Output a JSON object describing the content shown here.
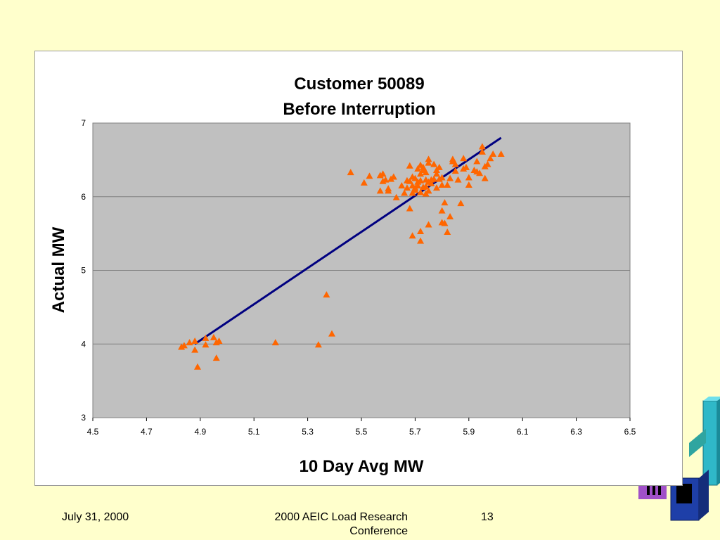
{
  "footer": {
    "date": "July 31, 2000",
    "conference": "2000 AEIC Load Research Conference",
    "page_number": "13"
  },
  "chart_data": {
    "type": "scatter",
    "title": "Customer 50089",
    "subtitle": "Before Interruption",
    "xlabel": "10 Day Avg MW",
    "ylabel": "Actual MW",
    "xlim": [
      4.5,
      6.5
    ],
    "ylim": [
      3,
      7
    ],
    "x_ticks": [
      "4.5",
      "4.7",
      "4.9",
      "5.1",
      "5.3",
      "5.5",
      "5.7",
      "5.9",
      "6.1",
      "6.3",
      "6.5"
    ],
    "y_ticks": [
      "3",
      "4",
      "5",
      "6",
      "7"
    ],
    "grid": "horizontal",
    "plot_background": "#c0c0c0",
    "marker_color": "#ff6600",
    "line_color": "#000080",
    "marker": "triangle",
    "trendline": {
      "x": [
        4.88,
        6.02
      ],
      "y": [
        4.0,
        6.8
      ]
    },
    "series": [
      {
        "points": [
          [
            4.83,
            3.96
          ],
          [
            4.84,
            3.98
          ],
          [
            4.86,
            4.02
          ],
          [
            4.88,
            4.04
          ],
          [
            4.88,
            3.92
          ],
          [
            4.89,
            3.69
          ],
          [
            4.92,
            4.08
          ],
          [
            4.92,
            3.99
          ],
          [
            4.95,
            4.09
          ],
          [
            4.96,
            4.02
          ],
          [
            4.96,
            3.81
          ],
          [
            4.97,
            4.04
          ],
          [
            5.18,
            4.02
          ],
          [
            5.34,
            3.99
          ],
          [
            5.37,
            4.67
          ],
          [
            5.39,
            4.14
          ],
          [
            5.46,
            6.33
          ],
          [
            5.51,
            6.19
          ],
          [
            5.53,
            6.28
          ],
          [
            5.57,
            6.08
          ],
          [
            5.57,
            6.29
          ],
          [
            5.58,
            6.31
          ],
          [
            5.58,
            6.21
          ],
          [
            5.59,
            6.23
          ],
          [
            5.6,
            6.08
          ],
          [
            5.6,
            6.11
          ],
          [
            5.61,
            6.24
          ],
          [
            5.62,
            6.27
          ],
          [
            5.63,
            5.99
          ],
          [
            5.65,
            6.15
          ],
          [
            5.66,
            6.05
          ],
          [
            5.67,
            6.22
          ],
          [
            5.67,
            6.12
          ],
          [
            5.68,
            6.42
          ],
          [
            5.68,
            5.84
          ],
          [
            5.68,
            6.21
          ],
          [
            5.69,
            6.27
          ],
          [
            5.69,
            6.15
          ],
          [
            5.69,
            6.05
          ],
          [
            5.69,
            5.47
          ],
          [
            5.7,
            6.25
          ],
          [
            5.7,
            6.12
          ],
          [
            5.7,
            6.09
          ],
          [
            5.71,
            6.38
          ],
          [
            5.71,
            6.2
          ],
          [
            5.71,
            6.15
          ],
          [
            5.72,
            6.43
          ],
          [
            5.72,
            6.31
          ],
          [
            5.72,
            6.22
          ],
          [
            5.72,
            6.06
          ],
          [
            5.72,
            5.53
          ],
          [
            5.72,
            5.4
          ],
          [
            5.73,
            6.4
          ],
          [
            5.73,
            6.36
          ],
          [
            5.73,
            6.13
          ],
          [
            5.74,
            6.33
          ],
          [
            5.74,
            6.23
          ],
          [
            5.74,
            6.14
          ],
          [
            5.74,
            6.04
          ],
          [
            5.75,
            6.51
          ],
          [
            5.75,
            6.46
          ],
          [
            5.75,
            6.2
          ],
          [
            5.75,
            6.08
          ],
          [
            5.75,
            5.62
          ],
          [
            5.76,
            6.18
          ],
          [
            5.76,
            6.23
          ],
          [
            5.77,
            6.44
          ],
          [
            5.77,
            6.24
          ],
          [
            5.78,
            6.36
          ],
          [
            5.78,
            6.31
          ],
          [
            5.78,
            6.12
          ],
          [
            5.79,
            6.4
          ],
          [
            5.79,
            6.24
          ],
          [
            5.8,
            6.26
          ],
          [
            5.8,
            6.16
          ],
          [
            5.8,
            5.81
          ],
          [
            5.8,
            5.65
          ],
          [
            5.81,
            5.92
          ],
          [
            5.81,
            5.64
          ],
          [
            5.82,
            6.16
          ],
          [
            5.82,
            5.52
          ],
          [
            5.83,
            5.73
          ],
          [
            5.83,
            6.25
          ],
          [
            5.84,
            6.51
          ],
          [
            5.84,
            6.48
          ],
          [
            5.85,
            6.44
          ],
          [
            5.85,
            6.35
          ],
          [
            5.86,
            6.23
          ],
          [
            5.87,
            5.91
          ],
          [
            5.88,
            6.38
          ],
          [
            5.88,
            6.52
          ],
          [
            5.89,
            6.4
          ],
          [
            5.9,
            6.26
          ],
          [
            5.9,
            6.16
          ],
          [
            5.92,
            6.36
          ],
          [
            5.93,
            6.34
          ],
          [
            5.93,
            6.48
          ],
          [
            5.94,
            6.32
          ],
          [
            5.95,
            6.68
          ],
          [
            5.95,
            6.61
          ],
          [
            5.96,
            6.41
          ],
          [
            5.96,
            6.25
          ],
          [
            5.97,
            6.44
          ],
          [
            5.98,
            6.52
          ],
          [
            5.99,
            6.58
          ],
          [
            6.02,
            6.58
          ]
        ]
      }
    ]
  }
}
